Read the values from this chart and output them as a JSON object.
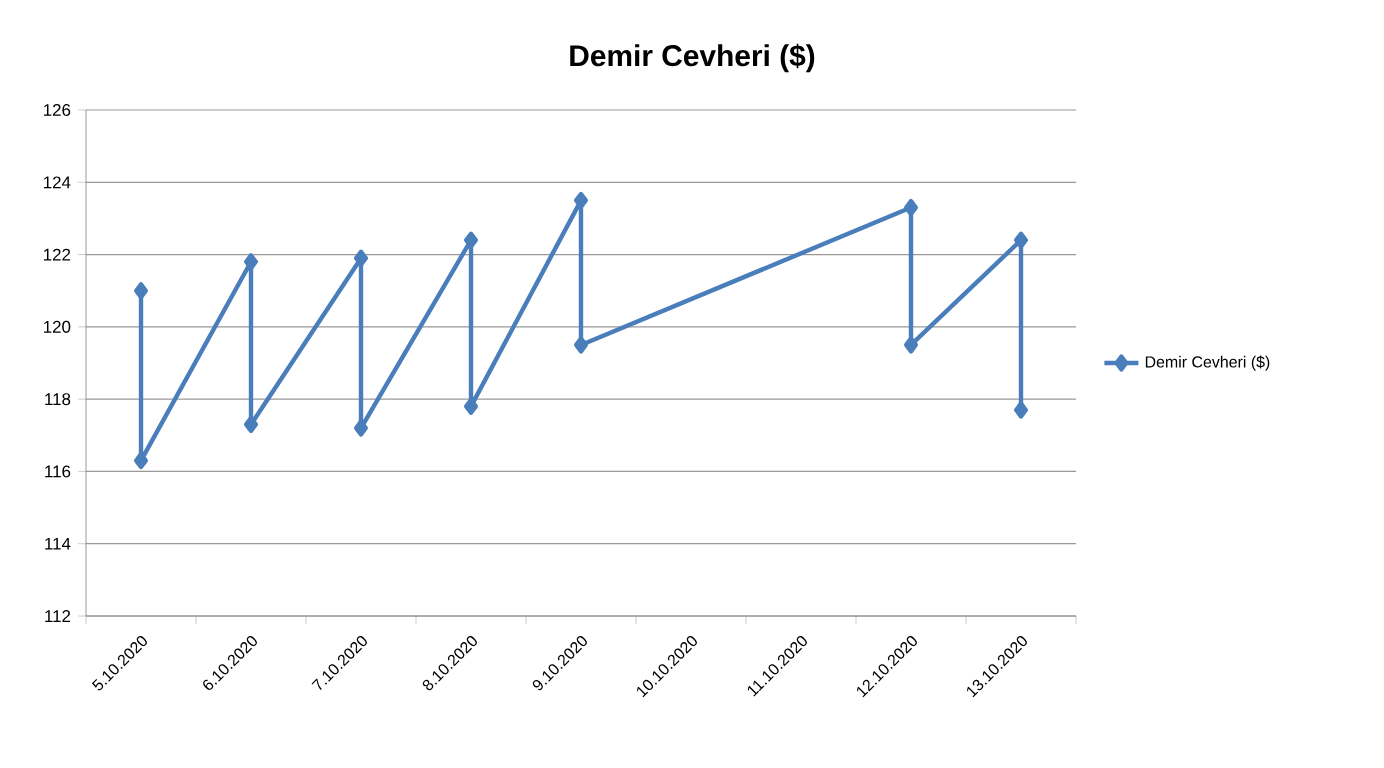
{
  "chart_data": {
    "type": "line",
    "title": "Demir Cevheri ($)",
    "series": [
      {
        "name": "Demir Cevheri ($)",
        "color": "#4a7ebb",
        "x": [
          "2020-10-05",
          "2020-10-05",
          "2020-10-06",
          "2020-10-06",
          "2020-10-07",
          "2020-10-07",
          "2020-10-08",
          "2020-10-08",
          "2020-10-09",
          "2020-10-09",
          "2020-10-12",
          "2020-10-12",
          "2020-10-13",
          "2020-10-13"
        ],
        "values": [
          121.0,
          116.3,
          121.8,
          117.3,
          121.9,
          117.2,
          122.4,
          117.8,
          123.5,
          119.5,
          123.3,
          119.5,
          122.4,
          117.7
        ]
      }
    ],
    "xlim": [
      "2020-10-04T12:00",
      "2020-10-13T12:00"
    ],
    "xticks": [
      {
        "value": "2020-10-04T12:00",
        "label": null
      },
      {
        "value": "2020-10-05",
        "label": "5.10.2020"
      },
      {
        "value": "2020-10-05T12:00",
        "label": null
      },
      {
        "value": "2020-10-06",
        "label": "6.10.2020"
      },
      {
        "value": "2020-10-06T12:00",
        "label": null
      },
      {
        "value": "2020-10-07",
        "label": "7.10.2020"
      },
      {
        "value": "2020-10-07T12:00",
        "label": null
      },
      {
        "value": "2020-10-08",
        "label": "8.10.2020"
      },
      {
        "value": "2020-10-08T12:00",
        "label": null
      },
      {
        "value": "2020-10-09",
        "label": "9.10.2020"
      },
      {
        "value": "2020-10-09T12:00",
        "label": null
      },
      {
        "value": "2020-10-10",
        "label": "10.10.2020"
      },
      {
        "value": "2020-10-10T12:00",
        "label": null
      },
      {
        "value": "2020-10-11",
        "label": "11.10.2020"
      },
      {
        "value": "2020-10-11T12:00",
        "label": null
      },
      {
        "value": "2020-10-12",
        "label": "12.10.2020"
      },
      {
        "value": "2020-10-12T12:00",
        "label": null
      },
      {
        "value": "2020-10-13",
        "label": "13.10.2020"
      },
      {
        "value": "2020-10-13T12:00",
        "label": null
      }
    ],
    "ylim": [
      112,
      126
    ],
    "yticks": [
      112,
      114,
      116,
      118,
      120,
      122,
      124,
      126
    ],
    "grid": "y",
    "legend": "right",
    "marker": "diamond",
    "line_style": "solid"
  }
}
